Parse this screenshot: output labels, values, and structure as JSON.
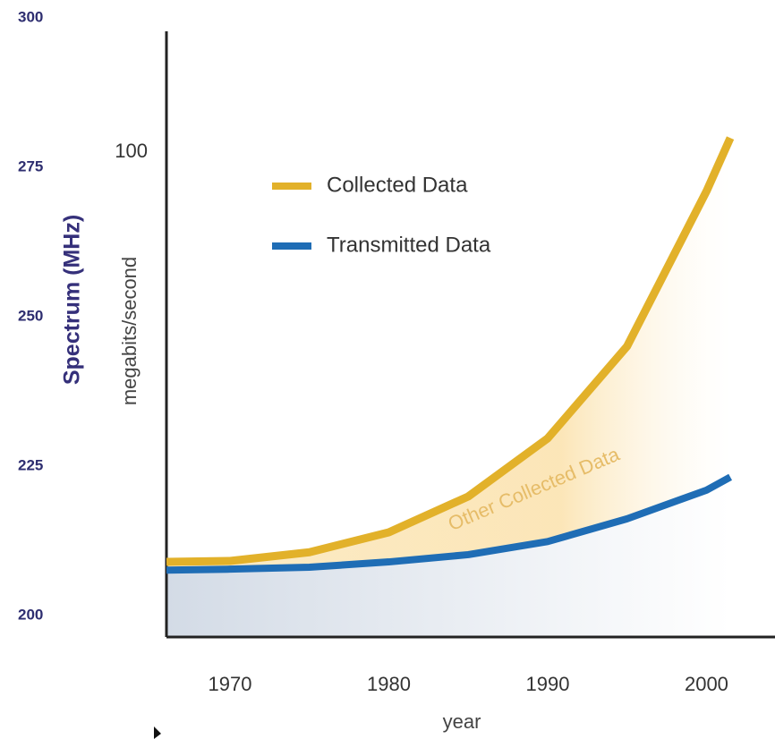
{
  "chart_data": {
    "type": "line",
    "y2label": "Spectrum (MHz)",
    "ylabel": "megabits/second",
    "xlabel": "year",
    "annotation": "Other Collected Data",
    "x": [
      1966,
      1970,
      1975,
      1980,
      1985,
      1990,
      1995,
      2000,
      2001.5
    ],
    "series": [
      {
        "name": "Collected Data",
        "color": "#e2b12a",
        "values": [
          15.5,
          15.7,
          17.5,
          21.6,
          29,
          41,
          60,
          92,
          103
        ]
      },
      {
        "name": "Transmitted Data",
        "color": "#1f6db5",
        "values": [
          13.8,
          14,
          14.4,
          15.5,
          17,
          19.7,
          24.4,
          30.3,
          33
        ]
      }
    ],
    "xlim": [
      1966,
      2004.2
    ],
    "xticks": [
      1970,
      1980,
      1990,
      2000
    ],
    "ylim": [
      0,
      125
    ],
    "yticks": [
      100
    ],
    "y2lim": [
      200,
      300
    ],
    "y2ticks": [
      300,
      275,
      250,
      225,
      200
    ]
  }
}
